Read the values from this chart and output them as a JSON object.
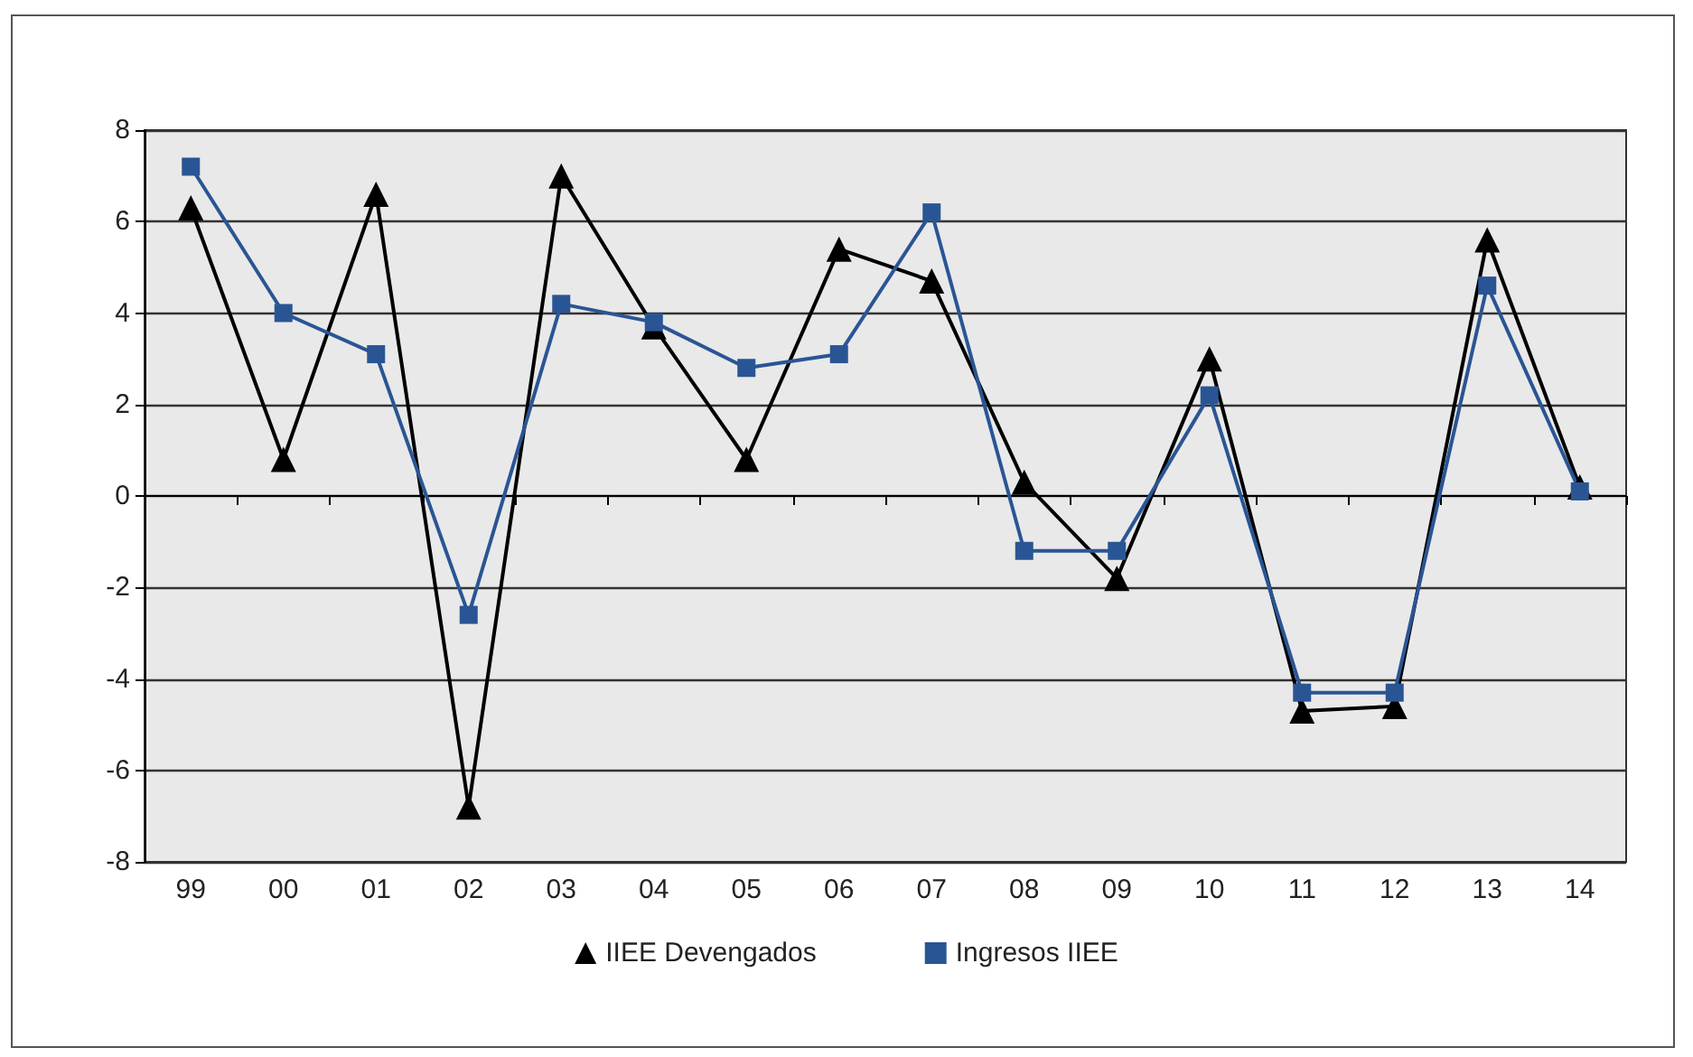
{
  "chart_data": {
    "type": "line",
    "categories": [
      "99",
      "00",
      "01",
      "02",
      "03",
      "04",
      "05",
      "06",
      "07",
      "08",
      "09",
      "10",
      "11",
      "12",
      "13",
      "14"
    ],
    "series": [
      {
        "name": "IIEE Devengados",
        "color": "#000000",
        "marker": "triangle",
        "values": [
          6.3,
          0.8,
          6.6,
          -6.8,
          7.0,
          3.7,
          0.8,
          5.4,
          4.7,
          0.3,
          -1.8,
          3.0,
          -4.7,
          -4.6,
          5.6,
          0.2
        ]
      },
      {
        "name": "Ingresos IIEE",
        "color": "#2a5594",
        "marker": "square",
        "values": [
          7.2,
          4.0,
          3.1,
          -2.6,
          4.2,
          3.8,
          2.8,
          3.1,
          6.2,
          -1.2,
          -1.2,
          2.2,
          -4.3,
          -4.3,
          4.6,
          0.1
        ]
      }
    ],
    "ylim": [
      -8,
      8
    ],
    "yticks": [
      -8,
      -6,
      -4,
      -2,
      0,
      2,
      4,
      6,
      8
    ],
    "grid": "y",
    "legend": "bottom",
    "line_style": "solid"
  }
}
